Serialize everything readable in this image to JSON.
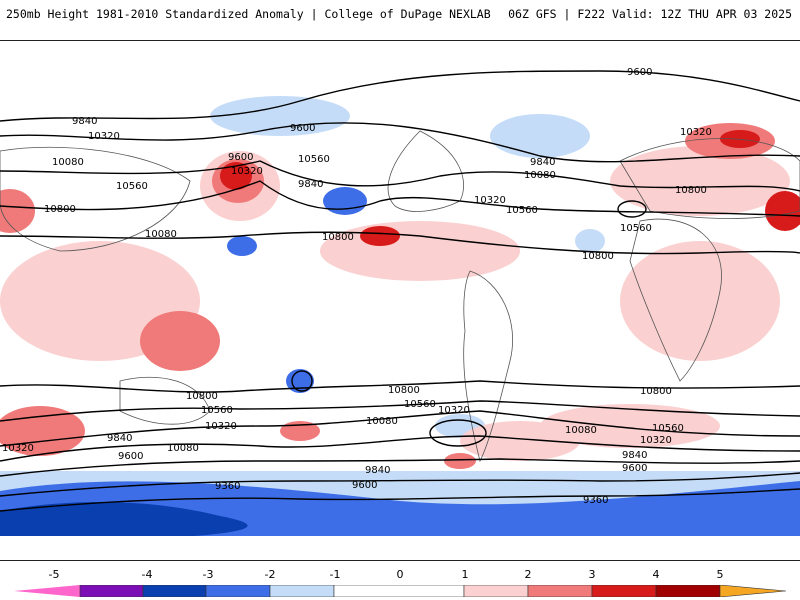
{
  "header": {
    "title_left": "250mb Height 1981-2010 Standardized Anomaly | College of DuPage NEXLAB",
    "title_right": "06Z GFS | F222 Valid: 12Z THU APR 03 2025"
  },
  "map": {
    "contour_labels": [
      "9600",
      "9600",
      "9840",
      "10320",
      "10080",
      "10560",
      "10800",
      "9600",
      "10320",
      "10560",
      "9840",
      "10080",
      "10800",
      "9840",
      "10080",
      "10320",
      "10560",
      "10800",
      "10320",
      "10560",
      "10800",
      "10800",
      "10560",
      "10320",
      "10080",
      "9840",
      "9600",
      "9360",
      "10800",
      "10560",
      "10320",
      "10080",
      "9840",
      "9600",
      "10800",
      "10560",
      "10320",
      "10080",
      "9840",
      "9600",
      "9360",
      "9600",
      "10320"
    ],
    "anomaly_colors": {
      "-5": "#ff66cc",
      "-4": "#7b0fb5",
      "-3": "#0a3fb0",
      "-2": "#3d6ee8",
      "-1": "#c4dcf7",
      "0": "#ffffff",
      "1": "#fbd0d0",
      "2": "#f07a7a",
      "3": "#d71a1a",
      "4": "#a00000",
      "5": "#f5a623"
    }
  },
  "colorbar": {
    "labels": [
      "-5",
      "-4",
      "-3",
      "-2",
      "-1",
      "0",
      "1",
      "2",
      "3",
      "4",
      "5"
    ]
  }
}
